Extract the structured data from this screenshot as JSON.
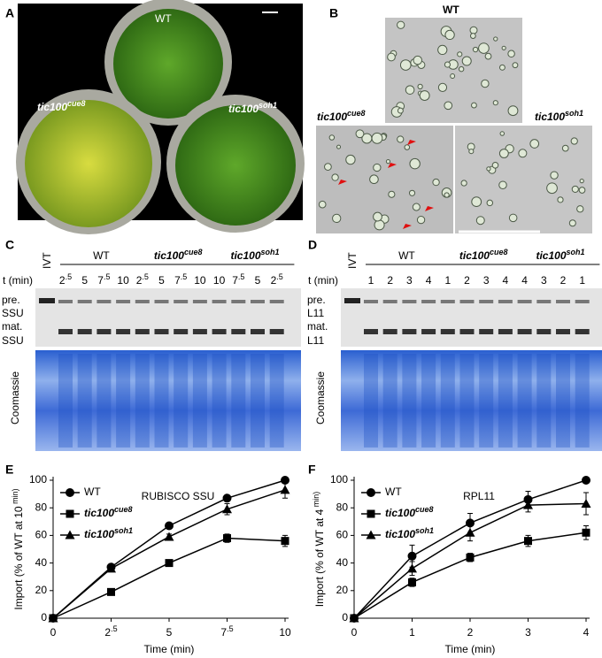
{
  "panel_letters": [
    "A",
    "B",
    "C",
    "D",
    "E",
    "F"
  ],
  "photo_labels": {
    "wt": "WT",
    "cue8": "tic100cue8",
    "soh1": "tic100soh1"
  },
  "micro_labels": {
    "wt": "WT",
    "cue8": "tic100cue8",
    "soh1": "tic100soh1"
  },
  "gel_c": {
    "groups": [
      "WT",
      "tic100cue8",
      "tic100soh1"
    ],
    "ivt": "IVT",
    "t_label": "t (min)",
    "times": [
      "2.5",
      "5",
      "7.5",
      "10",
      "2.5",
      "5",
      "7.5",
      "10",
      "10",
      "7.5",
      "5",
      "2.5"
    ],
    "rows": [
      "pre.",
      "SSU",
      "mat.",
      "SSU"
    ],
    "stain": "Coomassie"
  },
  "gel_d": {
    "groups": [
      "WT",
      "tic100cue8",
      "tic100soh1"
    ],
    "ivt": "IVT",
    "t_label": "t (min)",
    "times": [
      "1",
      "2",
      "3",
      "4",
      "1",
      "2",
      "3",
      "4",
      "4",
      "3",
      "2",
      "1"
    ],
    "rows": [
      "pre.",
      "L11",
      "mat.",
      "L11"
    ],
    "stain": "Coomassie"
  },
  "chart_data": [
    {
      "type": "line",
      "title": "RUBISCO SSU",
      "y_label": "Import (% of WT at 10 min)",
      "x_label": "Time (min)",
      "x": [
        0,
        2.5,
        5,
        7.5,
        10
      ],
      "xlim": [
        0,
        10
      ],
      "xticks": [
        0,
        2.5,
        5,
        7.5,
        10
      ],
      "ylim": [
        0,
        100
      ],
      "yticks": [
        0,
        20,
        40,
        60,
        80,
        100
      ],
      "series": [
        {
          "name": "WT",
          "color": "#000000",
          "marker": "circle",
          "values": [
            0,
            37,
            67,
            87,
            100
          ],
          "errors": [
            0,
            2,
            2,
            2,
            0
          ]
        },
        {
          "name": "tic100cue8",
          "color": "#000000",
          "marker": "square",
          "values": [
            0,
            19,
            40,
            58,
            56
          ],
          "errors": [
            0,
            1,
            1,
            3,
            4
          ]
        },
        {
          "name": "tic100soh1",
          "color": "#000000",
          "marker": "triangle",
          "values": [
            0,
            36,
            59,
            79,
            93
          ],
          "errors": [
            0,
            2,
            2,
            4,
            6
          ]
        }
      ]
    },
    {
      "type": "line",
      "title": "RPL11",
      "y_label": "Import (% of WT at 4 min)",
      "x_label": "Time (min)",
      "x": [
        0,
        1,
        2,
        3,
        4
      ],
      "xlim": [
        0,
        4
      ],
      "xticks": [
        0,
        1,
        2,
        3,
        4
      ],
      "ylim": [
        0,
        100
      ],
      "yticks": [
        0,
        20,
        40,
        60,
        80,
        100
      ],
      "series": [
        {
          "name": "WT",
          "color": "#000000",
          "marker": "circle",
          "values": [
            0,
            45,
            69,
            86,
            100
          ],
          "errors": [
            0,
            8,
            7,
            6,
            0
          ]
        },
        {
          "name": "tic100cue8",
          "color": "#000000",
          "marker": "square",
          "values": [
            0,
            26,
            44,
            56,
            62
          ],
          "errors": [
            0,
            3,
            3,
            4,
            5
          ]
        },
        {
          "name": "tic100soh1",
          "color": "#000000",
          "marker": "triangle",
          "values": [
            0,
            36,
            62,
            82,
            83
          ],
          "errors": [
            0,
            5,
            6,
            5,
            8
          ]
        }
      ]
    }
  ]
}
